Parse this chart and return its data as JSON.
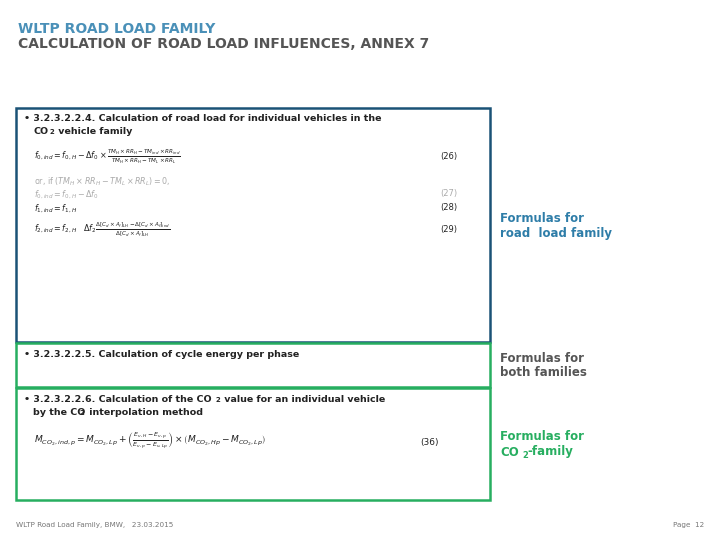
{
  "title_line1": "WLTP ROAD LOAD FAMILY",
  "title_line2": "CALCULATION OF ROAD LOAD INFLUENCES, ANNEX 7",
  "title_color1": "#4a90b8",
  "title_color2": "#555555",
  "bg_color": "#ffffff",
  "box1_border_color": "#1a5276",
  "box2_border_color": "#27ae60",
  "box3_border_color": "#27ae60",
  "label1_color": "#2e7da8",
  "label2_color": "#555555",
  "label3_color": "#27ae60",
  "footer_color": "#777777",
  "footer_left": "WLTP Road Load Family, BMW,   23.03.2015",
  "footer_right": "Page  12"
}
